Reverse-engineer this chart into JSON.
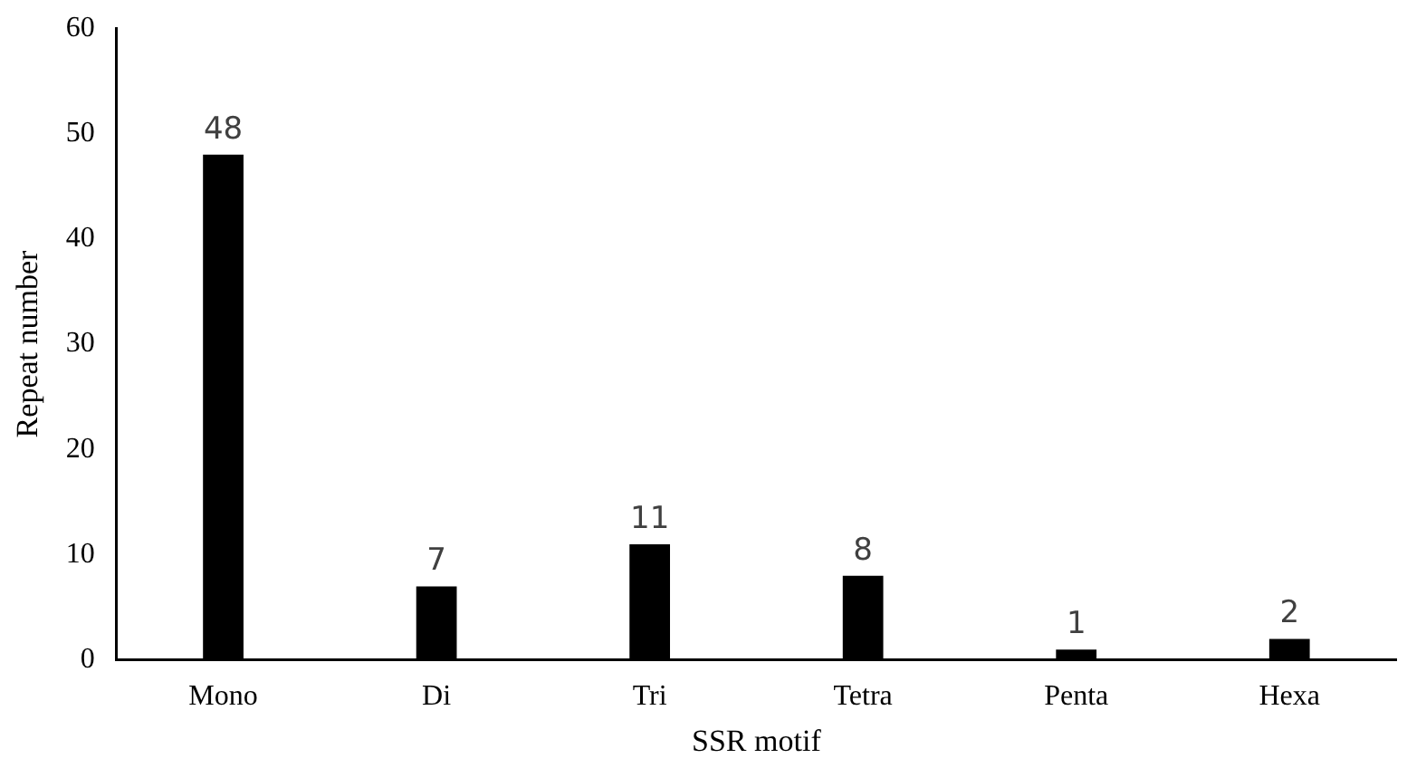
{
  "chart_data": {
    "type": "bar",
    "xlabel": "SSR motif",
    "ylabel": "Repeat number",
    "categories": [
      "Mono",
      "Di",
      "Tri",
      "Tetra",
      "Penta",
      "Hexa"
    ],
    "values": [
      48,
      7,
      11,
      8,
      1,
      2
    ],
    "color": "#000000",
    "ylim": [
      0,
      60
    ],
    "yticks": [
      0,
      10,
      20,
      30,
      40,
      50,
      60
    ],
    "grid": false,
    "legend": false,
    "data_labels": true
  }
}
